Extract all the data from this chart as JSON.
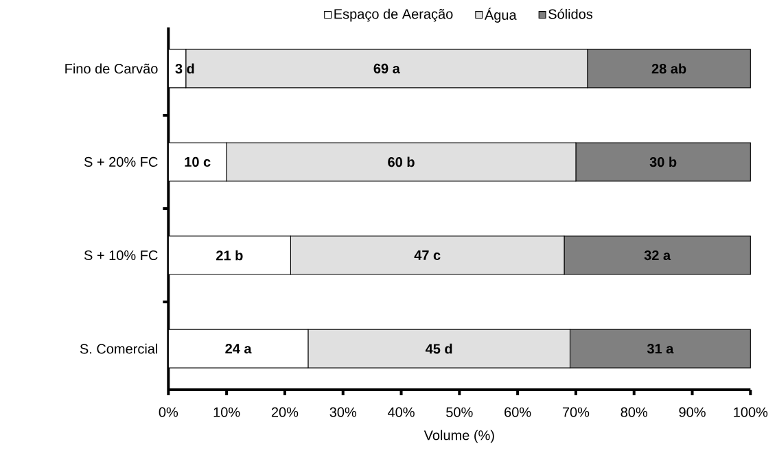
{
  "chart_data": {
    "type": "bar",
    "orientation": "horizontal",
    "stacked": true,
    "xlabel": "Volume (%)",
    "categories": [
      "Fino de Carvão",
      "S + 20% FC",
      "S + 10% FC",
      "S. Comercial"
    ],
    "series": [
      {
        "name": "Espaço de Aeração",
        "color": "#ffffff",
        "values": [
          3,
          10,
          21,
          24
        ],
        "value_labels": [
          "3 d",
          "10 c",
          "21 b",
          "24 a"
        ]
      },
      {
        "name": "Água",
        "color": "#e0e0e0",
        "values": [
          69,
          60,
          47,
          45
        ],
        "value_labels": [
          "69 a",
          "60 b",
          "47 c",
          "45 d"
        ]
      },
      {
        "name": "Sólidos",
        "color": "#808080",
        "values": [
          28,
          30,
          32,
          31
        ],
        "value_labels": [
          "28 ab",
          "30 b",
          "32 a",
          "31 a"
        ]
      }
    ],
    "xlim": [
      0,
      100
    ],
    "xticks": [
      {
        "value": 0,
        "label": "0%"
      },
      {
        "value": 10,
        "label": "10%"
      },
      {
        "value": 20,
        "label": "20%"
      },
      {
        "value": 30,
        "label": "30%"
      },
      {
        "value": 40,
        "label": "40%"
      },
      {
        "value": 50,
        "label": "50%"
      },
      {
        "value": 60,
        "label": "60%"
      },
      {
        "value": 70,
        "label": "70%"
      },
      {
        "value": 80,
        "label": "80%"
      },
      {
        "value": 90,
        "label": "90%"
      },
      {
        "value": 100,
        "label": "100%"
      }
    ],
    "legend": "top",
    "grid": false
  }
}
